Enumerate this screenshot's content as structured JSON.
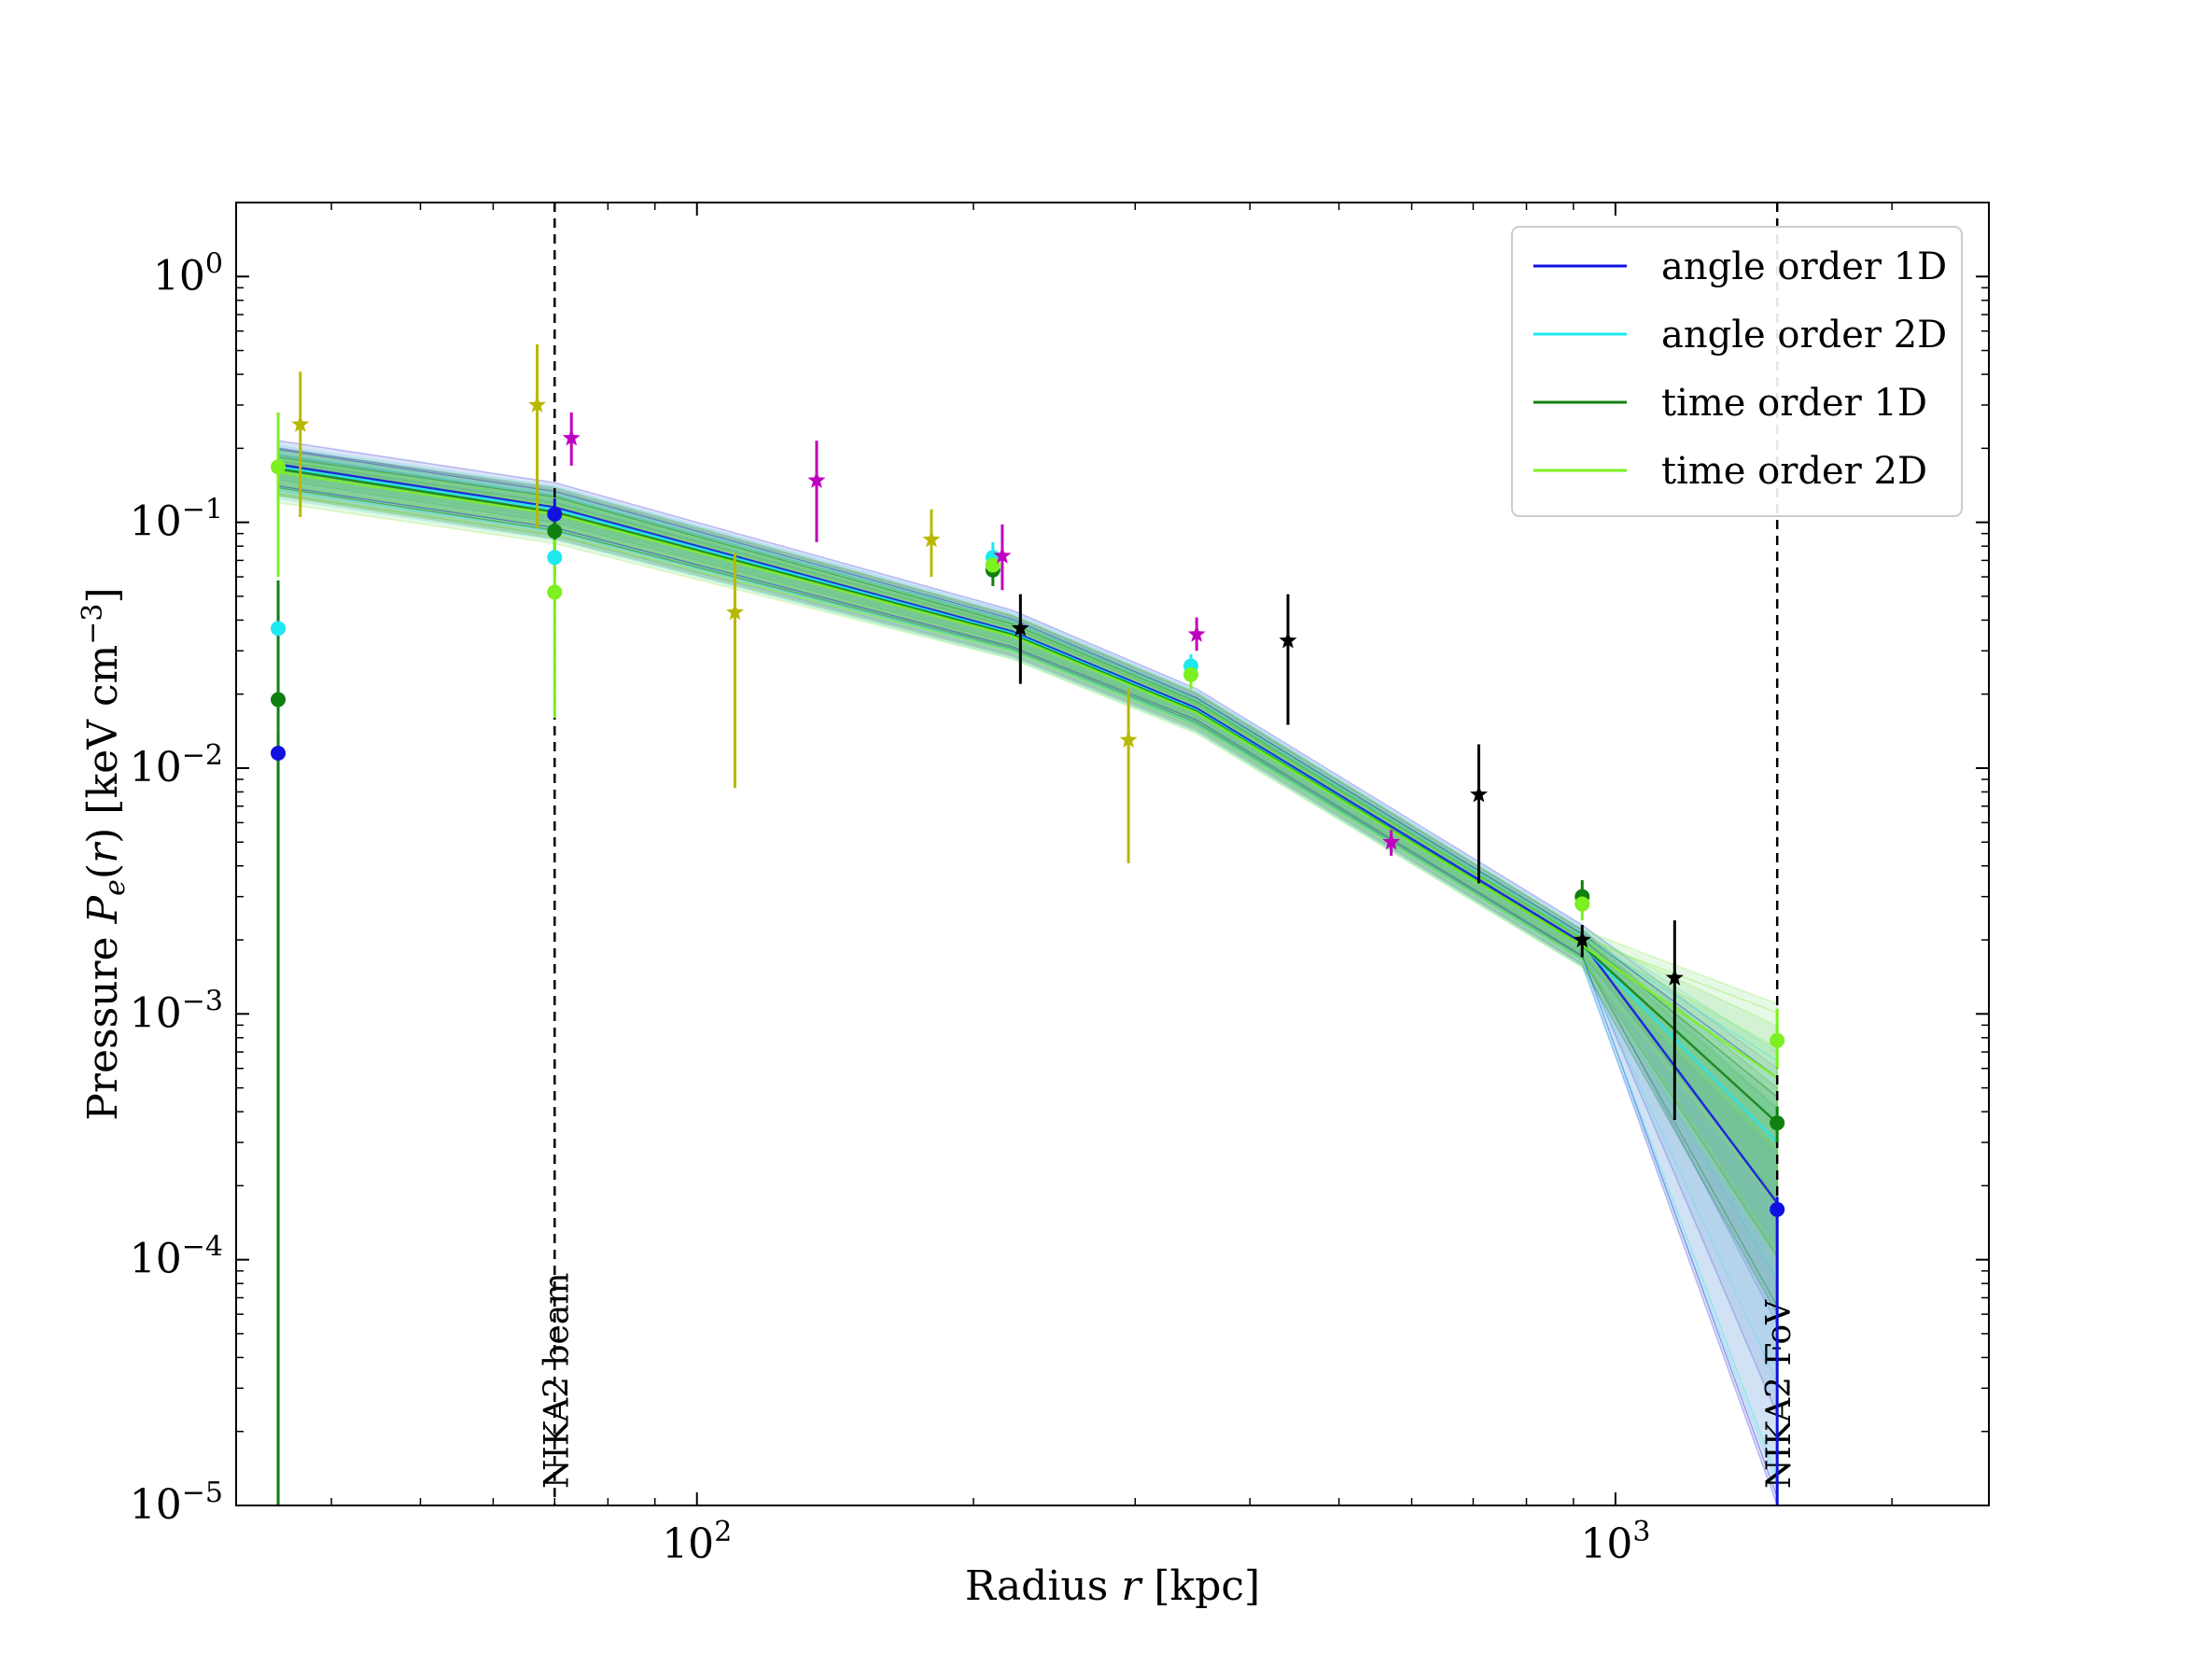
{
  "chart_data": {
    "type": "line",
    "xlabel": "Radius r [kpc]",
    "ylabel": "Pressure P_e(r) [keV cm^-3]",
    "xscale": "log",
    "yscale": "log",
    "xlim": [
      31.5,
      2550
    ],
    "ylim": [
      1e-05,
      2.0
    ],
    "x_ticks": [
      {
        "value": 100,
        "label": "10",
        "exp": "2"
      },
      {
        "value": 1000,
        "label": "10",
        "exp": "3"
      }
    ],
    "y_ticks": [
      {
        "value": 1e-05,
        "label": "10",
        "exp": "−5"
      },
      {
        "value": 0.0001,
        "label": "10",
        "exp": "−4"
      },
      {
        "value": 0.001,
        "label": "10",
        "exp": "−3"
      },
      {
        "value": 0.01,
        "label": "10",
        "exp": "−2"
      },
      {
        "value": 0.1,
        "label": "10",
        "exp": "−1"
      },
      {
        "value": 1,
        "label": "10",
        "exp": "0"
      }
    ],
    "legend_position": "top-right",
    "vlines": [
      {
        "x": 70,
        "label": "NIKA2 beam"
      },
      {
        "x": 1500,
        "label": "NIKA2 FoV"
      }
    ],
    "series": [
      {
        "name": "angle order 1D",
        "color": "#1010e0",
        "fill": "#6b7fd8",
        "x": [
          35,
          70,
          220,
          350,
          920,
          1500
        ],
        "y": [
          0.172,
          0.115,
          0.036,
          0.0175,
          0.00195,
          0.00017
        ],
        "band_lo": [
          0.13,
          0.088,
          0.029,
          0.0145,
          0.0016,
          1e-05
        ],
        "band_hi": [
          0.215,
          0.145,
          0.044,
          0.021,
          0.0023,
          0.0006
        ],
        "points": {
          "x": [
            35,
            70,
            1500
          ],
          "y": [
            0.0115,
            0.108,
            0.00016
          ],
          "lo": [
            1e-05,
            0.09,
            1e-05
          ],
          "hi": [
            0.014,
            0.125,
            0.00018
          ]
        }
      },
      {
        "name": "angle order 2D",
        "color": "#1ee8f0",
        "fill": "#9fdde8",
        "x": [
          35,
          70,
          220,
          350,
          920,
          1500
        ],
        "y": [
          0.168,
          0.113,
          0.0355,
          0.0172,
          0.0019,
          0.0003
        ],
        "band_lo": [
          0.125,
          0.085,
          0.028,
          0.014,
          0.00155,
          1.2e-05
        ],
        "band_hi": [
          0.205,
          0.14,
          0.043,
          0.0205,
          0.00225,
          0.0007
        ],
        "points": {
          "x": [
            35,
            70,
            210,
            345
          ],
          "y": [
            0.037,
            0.072,
            0.072,
            0.026
          ],
          "lo": [
            0.03,
            0.06,
            0.062,
            0.023
          ],
          "hi": [
            0.045,
            0.085,
            0.083,
            0.029
          ]
        }
      },
      {
        "name": "time order 1D",
        "color": "#108010",
        "fill": "#2f9a5a",
        "x": [
          35,
          70,
          220,
          350,
          920,
          1500
        ],
        "y": [
          0.165,
          0.11,
          0.035,
          0.017,
          0.0019,
          0.00036
        ],
        "band_lo": [
          0.128,
          0.086,
          0.0285,
          0.0142,
          0.00158,
          6e-05
        ],
        "band_hi": [
          0.2,
          0.138,
          0.042,
          0.0202,
          0.0022,
          0.0005
        ],
        "points": {
          "x": [
            35,
            70,
            210,
            920,
            1500
          ],
          "y": [
            0.019,
            0.092,
            0.064,
            0.003,
            0.00036
          ],
          "lo": [
            1e-05,
            0.075,
            0.055,
            0.0026,
            0.0003
          ],
          "hi": [
            0.058,
            0.11,
            0.073,
            0.0035,
            0.00042
          ]
        }
      },
      {
        "name": "time order 2D",
        "color": "#7cf020",
        "fill": "#8fe08f",
        "x": [
          35,
          70,
          220,
          350,
          920,
          1500
        ],
        "y": [
          0.16,
          0.108,
          0.0345,
          0.0168,
          0.0019,
          0.00055
        ],
        "band_lo": [
          0.12,
          0.082,
          0.0278,
          0.0138,
          0.00155,
          0.0001
        ],
        "band_hi": [
          0.195,
          0.135,
          0.0415,
          0.02,
          0.0022,
          0.0011
        ],
        "points": {
          "x": [
            35,
            70,
            210,
            345,
            920,
            1500
          ],
          "y": [
            0.168,
            0.052,
            0.067,
            0.024,
            0.0028,
            0.00078
          ],
          "lo": [
            0.06,
            0.016,
            0.06,
            0.021,
            0.0024,
            0.0006
          ],
          "hi": [
            0.28,
            0.085,
            0.074,
            0.027,
            0.0032,
            0.00105
          ]
        }
      }
    ],
    "external_points": [
      {
        "name": "yellow stars",
        "color": "#b8b800",
        "x": [
          37,
          67,
          110,
          180,
          295
        ],
        "y": [
          0.25,
          0.3,
          0.043,
          0.085,
          0.013
        ],
        "lo": [
          0.105,
          0.095,
          0.0083,
          0.06,
          0.0041
        ],
        "hi": [
          0.41,
          0.53,
          0.075,
          0.113,
          0.021
        ]
      },
      {
        "name": "magenta stars",
        "color": "#c000c0",
        "x": [
          73,
          135,
          215,
          350,
          570
        ],
        "y": [
          0.22,
          0.148,
          0.073,
          0.035,
          0.005
        ],
        "lo": [
          0.17,
          0.083,
          0.053,
          0.03,
          0.0044
        ],
        "hi": [
          0.28,
          0.215,
          0.098,
          0.041,
          0.0056
        ]
      },
      {
        "name": "black stars",
        "color": "#000000",
        "x": [
          225,
          440,
          710,
          920,
          1160
        ],
        "y": [
          0.037,
          0.033,
          0.0078,
          0.002,
          0.0014
        ],
        "lo": [
          0.022,
          0.015,
          0.0034,
          0.0017,
          0.00037
        ],
        "hi": [
          0.051,
          0.051,
          0.0125,
          0.0023,
          0.0024
        ]
      }
    ]
  }
}
